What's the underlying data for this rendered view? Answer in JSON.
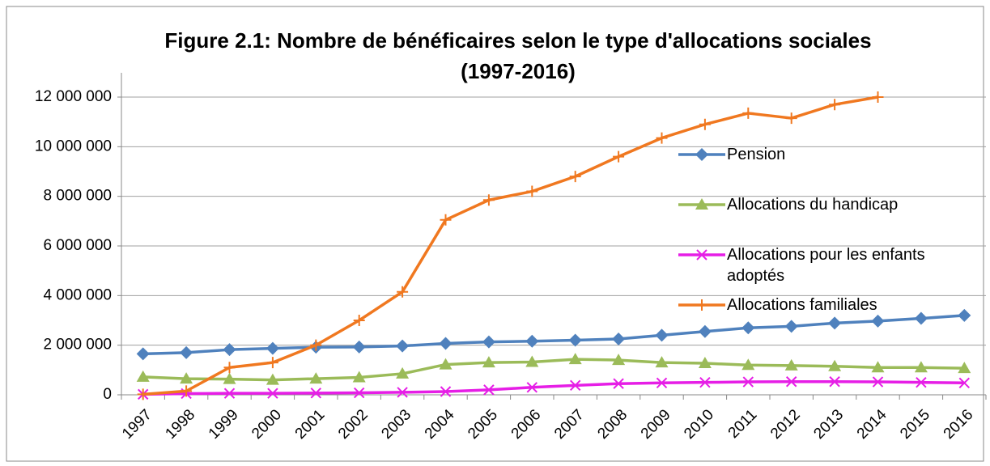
{
  "chart_data": {
    "type": "line",
    "title": [
      "Figure 2.1: Nombre de bénéficaires selon le type d'allocations sociales",
      "(1997-2016)"
    ],
    "categories": [
      "1997",
      "1998",
      "1999",
      "2000",
      "2001",
      "2002",
      "2003",
      "2004",
      "2005",
      "2006",
      "2007",
      "2008",
      "2009",
      "2010",
      "2011",
      "2012",
      "2013",
      "2014",
      "2015",
      "2016"
    ],
    "series": [
      {
        "name": "Pension",
        "color": "#4f81bd",
        "marker": "diamond",
        "values": [
          1650000,
          1700000,
          1820000,
          1870000,
          1920000,
          1930000,
          1970000,
          2070000,
          2130000,
          2160000,
          2200000,
          2250000,
          2400000,
          2550000,
          2700000,
          2760000,
          2890000,
          2970000,
          3080000,
          3200000
        ]
      },
      {
        "name": "Allocations du handicap",
        "color": "#9bbb59",
        "marker": "triangle",
        "values": [
          720000,
          650000,
          630000,
          600000,
          650000,
          700000,
          850000,
          1220000,
          1300000,
          1320000,
          1430000,
          1400000,
          1300000,
          1270000,
          1200000,
          1180000,
          1150000,
          1100000,
          1100000,
          1070000
        ]
      },
      {
        "name": "Allocations pour les enfants adoptés",
        "color": "#e61ee6",
        "marker": "x",
        "values": [
          20000,
          50000,
          60000,
          60000,
          70000,
          80000,
          100000,
          130000,
          200000,
          300000,
          380000,
          450000,
          480000,
          500000,
          520000,
          530000,
          530000,
          520000,
          500000,
          480000
        ]
      },
      {
        "name": "Allocations familiales",
        "color": "#f07820",
        "marker": "plus",
        "values": [
          20000,
          150000,
          1100000,
          1300000,
          2000000,
          3000000,
          4150000,
          7050000,
          7850000,
          8200000,
          8800000,
          9600000,
          10350000,
          10900000,
          11350000,
          11150000,
          11700000,
          12000000,
          null,
          null
        ]
      }
    ],
    "ylim": [
      0,
      12000000
    ],
    "yticks": [
      0,
      {
        "value": 2000000,
        "label": "2 000 000"
      },
      {
        "value": 4000000,
        "label": "4 000 000"
      },
      {
        "value": 6000000,
        "label": "6 000 000"
      },
      {
        "value": 8000000,
        "label": "8 000 000"
      },
      {
        "value": 10000000,
        "label": "10 000 000"
      },
      {
        "value": 12000000,
        "label": "12 000 000"
      }
    ],
    "grid": true
  }
}
